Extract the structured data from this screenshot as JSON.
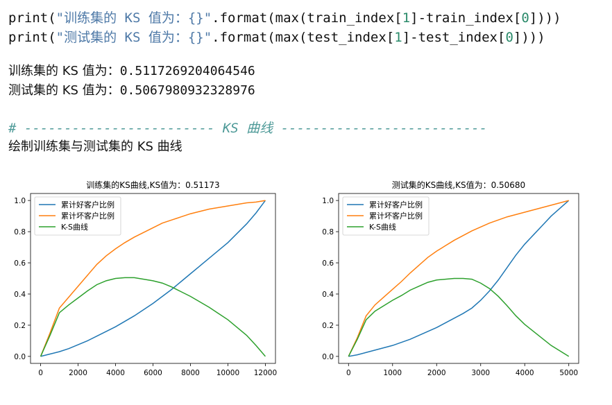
{
  "code": {
    "line1": {
      "pre": "print(",
      "str": "\"训练集的 KS 值为：{}\"",
      "mid": ".format(max(train_index[",
      "n1": "1",
      "mid2": "]-train_index[",
      "n2": "0",
      "post": "]))"
    },
    "line2": {
      "pre": "print(",
      "str": "\"测试集的 KS 值为：{}\"",
      "mid": ".format(max(test_index[",
      "n1": "1",
      "mid2": "]-test_index[",
      "n2": "0",
      "post": "]))"
    }
  },
  "output": {
    "train_label": "训练集的 KS 值为：",
    "train_value": "0.5117269204064546",
    "test_label": "测试集的 KS 值为：",
    "test_value": "0.5067980932328976"
  },
  "comment": "# ------------------------ KS 曲线 --------------------------",
  "heading": "绘制训练集与测试集的 KS 曲线",
  "colors": {
    "good": "#1f77b4",
    "bad": "#ff7f0e",
    "ks": "#2ca02c"
  },
  "chart_data": [
    {
      "type": "line",
      "title": "训练集的KS曲线,KS值为：0.51173",
      "xlim": [
        0,
        12000
      ],
      "ylim": [
        0,
        1.0
      ],
      "xticks": [
        0,
        2000,
        4000,
        6000,
        8000,
        10000,
        12000
      ],
      "yticks": [
        0.0,
        0.2,
        0.4,
        0.6,
        0.8,
        1.0
      ],
      "legend_position": "top-left",
      "x": [
        0,
        500,
        1000,
        1500,
        2000,
        2500,
        3000,
        3500,
        4000,
        4500,
        5000,
        5500,
        6000,
        6500,
        7000,
        7500,
        8000,
        8500,
        9000,
        9500,
        10000,
        10500,
        11000,
        11500,
        12000
      ],
      "series": [
        {
          "name": "累计好客户比例",
          "values": [
            0,
            0.015,
            0.03,
            0.05,
            0.075,
            0.1,
            0.13,
            0.16,
            0.19,
            0.225,
            0.26,
            0.3,
            0.34,
            0.385,
            0.43,
            0.48,
            0.53,
            0.58,
            0.63,
            0.68,
            0.73,
            0.79,
            0.85,
            0.92,
            1.0
          ]
        },
        {
          "name": "累计坏客户比例",
          "values": [
            0,
            0.15,
            0.31,
            0.38,
            0.45,
            0.52,
            0.59,
            0.645,
            0.69,
            0.73,
            0.765,
            0.795,
            0.825,
            0.855,
            0.875,
            0.895,
            0.915,
            0.93,
            0.945,
            0.955,
            0.965,
            0.975,
            0.985,
            0.99,
            1.0
          ]
        },
        {
          "name": "K-S曲线",
          "values": [
            0,
            0.135,
            0.28,
            0.33,
            0.375,
            0.42,
            0.46,
            0.485,
            0.5,
            0.505,
            0.505,
            0.495,
            0.485,
            0.47,
            0.445,
            0.415,
            0.385,
            0.35,
            0.315,
            0.275,
            0.235,
            0.185,
            0.135,
            0.07,
            0.0
          ]
        }
      ]
    },
    {
      "type": "line",
      "title": "测试集的KS曲线,KS值为：0.50680",
      "xlim": [
        0,
        5000
      ],
      "ylim": [
        0,
        1.0
      ],
      "xticks": [
        0,
        1000,
        2000,
        3000,
        4000,
        5000
      ],
      "yticks": [
        0.0,
        0.2,
        0.4,
        0.6,
        0.8,
        1.0
      ],
      "legend_position": "top-left",
      "x": [
        0,
        200,
        400,
        600,
        800,
        1000,
        1200,
        1400,
        1600,
        1800,
        2000,
        2200,
        2400,
        2600,
        2800,
        3000,
        3200,
        3400,
        3600,
        3800,
        4000,
        4200,
        4400,
        4600,
        4800,
        5000
      ],
      "series": [
        {
          "name": "累计好客户比例",
          "values": [
            0,
            0.01,
            0.025,
            0.04,
            0.055,
            0.07,
            0.09,
            0.11,
            0.135,
            0.16,
            0.185,
            0.215,
            0.245,
            0.275,
            0.31,
            0.36,
            0.42,
            0.49,
            0.57,
            0.65,
            0.72,
            0.78,
            0.84,
            0.9,
            0.95,
            1.0
          ]
        },
        {
          "name": "累计坏客户比例",
          "values": [
            0,
            0.12,
            0.26,
            0.33,
            0.38,
            0.43,
            0.48,
            0.535,
            0.585,
            0.635,
            0.675,
            0.71,
            0.745,
            0.775,
            0.805,
            0.83,
            0.855,
            0.875,
            0.895,
            0.91,
            0.925,
            0.94,
            0.955,
            0.97,
            0.985,
            1.0
          ]
        },
        {
          "name": "K-S曲线",
          "values": [
            0,
            0.11,
            0.235,
            0.29,
            0.325,
            0.36,
            0.39,
            0.425,
            0.45,
            0.475,
            0.49,
            0.495,
            0.5,
            0.5,
            0.495,
            0.47,
            0.435,
            0.385,
            0.325,
            0.26,
            0.205,
            0.16,
            0.115,
            0.07,
            0.035,
            0.0
          ]
        }
      ]
    }
  ]
}
